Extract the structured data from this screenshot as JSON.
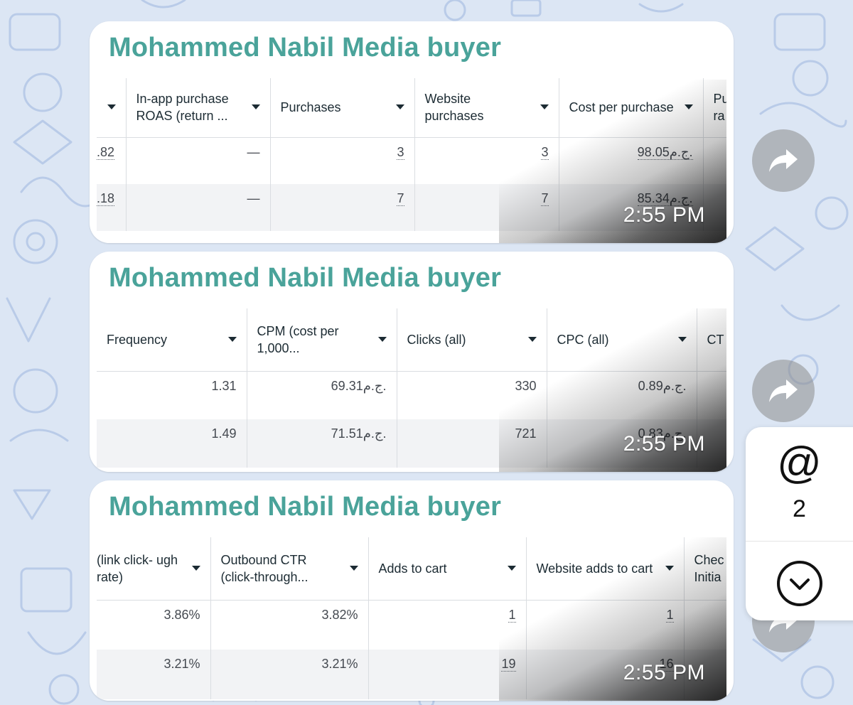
{
  "messages": [
    {
      "sender": "Mohammed Nabil Media buyer",
      "time": "2:55 PM",
      "headers": [
        "",
        "In-app purchase ROAS (return ...",
        "Purchases",
        "Website purchases",
        "Cost per purchase",
        "Pu ra"
      ],
      "rows": [
        [
          ".82",
          "—",
          "3",
          "3",
          "98.05ج.م.",
          ""
        ],
        [
          ".18",
          "—",
          "7",
          "7",
          "85.34ج.م.",
          ""
        ]
      ]
    },
    {
      "sender": "Mohammed Nabil Media buyer",
      "time": "2:55 PM",
      "headers": [
        "Frequency",
        "CPM (cost per 1,000...",
        "Clicks (all)",
        "CPC (all)",
        "CT"
      ],
      "rows": [
        [
          "1.31",
          "69.31ج.م.",
          "330",
          "0.89ج.م.",
          ""
        ],
        [
          "1.49",
          "71.51ج.م.",
          "721",
          "0.83ج.م.",
          ""
        ]
      ]
    },
    {
      "sender": "Mohammed Nabil Media buyer",
      "time": "2:55 PM",
      "headers": [
        "(link click- ugh rate)",
        "Outbound CTR (click-through...",
        "Adds to cart",
        "Website adds to cart",
        "Chec Initia"
      ],
      "rows": [
        [
          "3.86%",
          "3.82%",
          "1",
          "1",
          ""
        ],
        [
          "3.21%",
          "3.21%",
          "19",
          "16",
          ""
        ]
      ]
    }
  ],
  "side_panel": {
    "mention_symbol": "@",
    "mention_count": "2"
  },
  "icons": {
    "forward": "forward-arrow-icon",
    "scroll_down": "chevron-down-circle-icon",
    "mention": "at-sign-icon"
  },
  "colors": {
    "sender": "#4aa39a",
    "wallpaper": "#dce6f4"
  }
}
